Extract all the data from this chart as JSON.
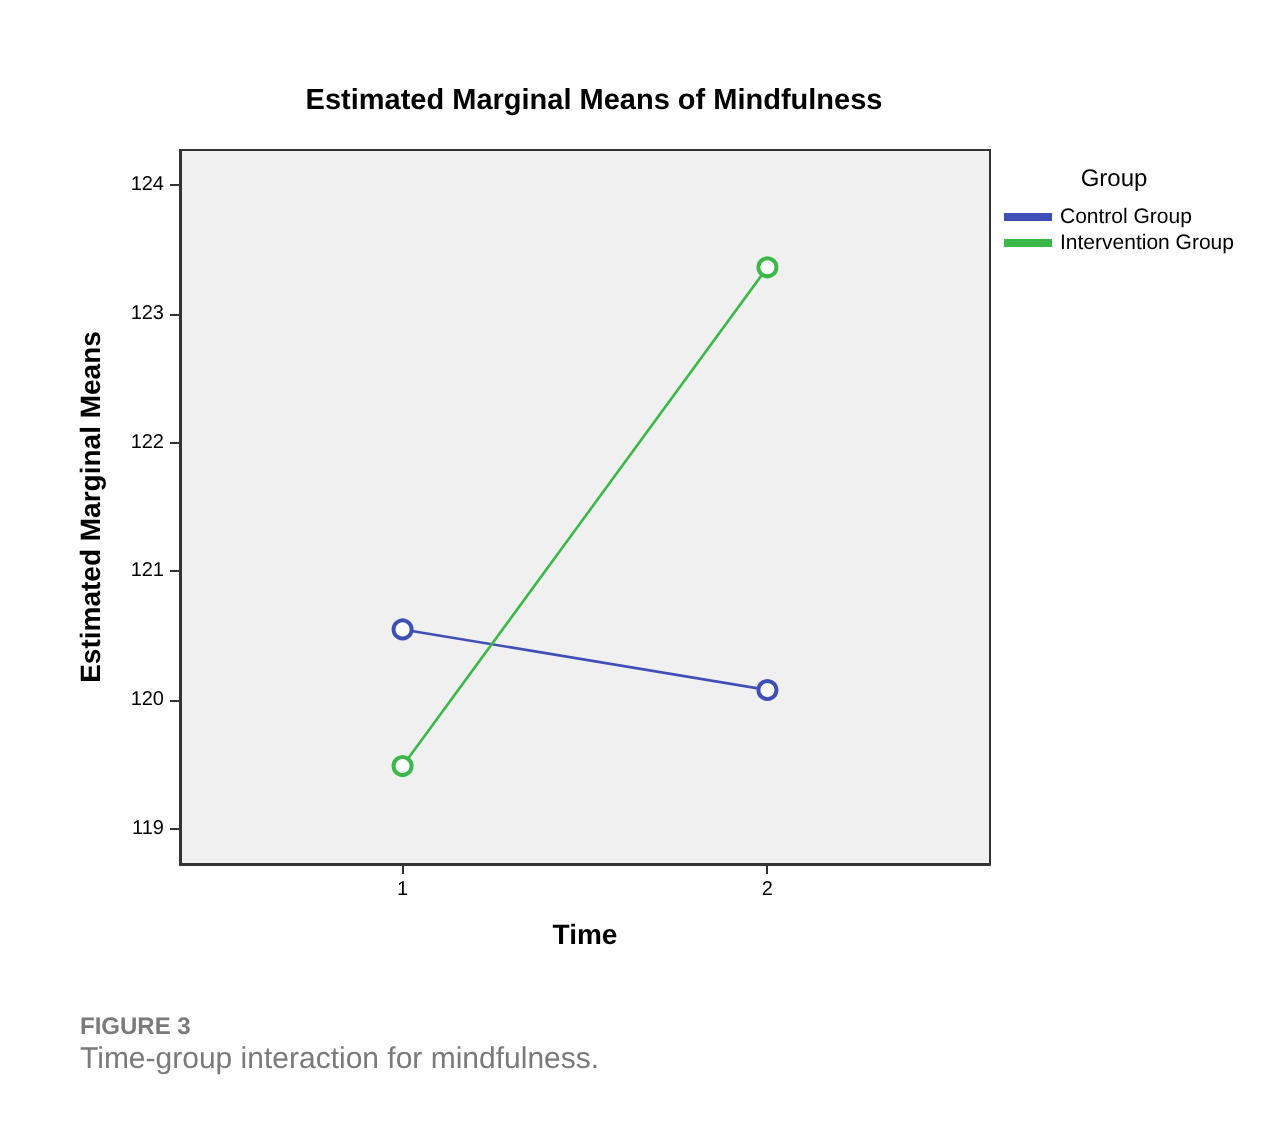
{
  "chart_data": {
    "type": "line",
    "title": "Estimated Marginal Means of Mindfulness",
    "xlabel": "Time",
    "ylabel": "Estimated Marginal Means",
    "legend_title": "Group",
    "x": [
      1,
      2
    ],
    "series": [
      {
        "name": "Control Group",
        "color": "#3f4fb8",
        "values": [
          120.55,
          120.08
        ]
      },
      {
        "name": "Intervention Group",
        "color": "#3cb84a",
        "values": [
          119.49,
          123.36
        ]
      }
    ],
    "xlim": [
      0.39,
      2.61
    ],
    "xticks": [
      1,
      2
    ],
    "ylim": [
      118.73,
      124.27
    ],
    "yticks": [
      119,
      120,
      121,
      122,
      123,
      124
    ],
    "grid": false,
    "legend": "top right",
    "marker": "circle",
    "line_style": "solid",
    "annotations": [
      "FIGURE 3",
      "Time-group interaction for mindfulness."
    ]
  }
}
